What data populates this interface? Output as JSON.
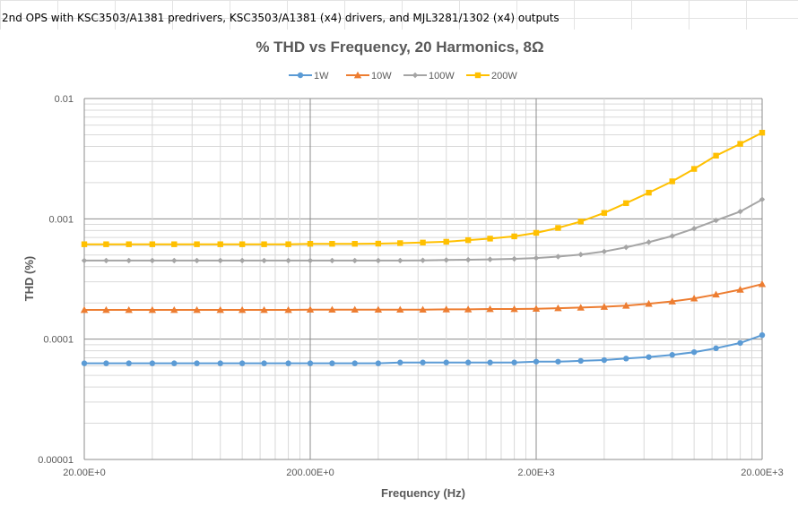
{
  "sheet": {
    "header_text": "2nd OPS with KSC3503/A1381 predrivers, KSC3503/A1381 (x4) drivers, and MJL3281/1302  (x4) outputs"
  },
  "chart_data": {
    "type": "line",
    "title": "% THD vs Frequency, 20 Harmonics, 8Ω",
    "xlabel": "Frequency (Hz)",
    "ylabel": "THD (%)",
    "x_scale": "log",
    "y_scale": "log",
    "xlim": [
      20,
      20000
    ],
    "ylim": [
      1e-05,
      0.01
    ],
    "x_ticks": [
      {
        "value": 20,
        "label": "20.00E+0"
      },
      {
        "value": 200,
        "label": "200.00E+0"
      },
      {
        "value": 2000,
        "label": "2.00E+3"
      },
      {
        "value": 20000,
        "label": "20.00E+3"
      }
    ],
    "y_ticks": [
      {
        "value": 1e-05,
        "label": "0.00001"
      },
      {
        "value": 0.0001,
        "label": "0.0001"
      },
      {
        "value": 0.001,
        "label": "0.001"
      },
      {
        "value": 0.01,
        "label": "0.01"
      }
    ],
    "grid": true,
    "legend_position": "top",
    "x": [
      20,
      25,
      31.5,
      40,
      50,
      63,
      80,
      100,
      125,
      160,
      200,
      250,
      315,
      400,
      500,
      630,
      800,
      1000,
      1250,
      1600,
      2000,
      2500,
      3150,
      4000,
      5000,
      6300,
      8000,
      10000,
      12500,
      16000,
      20000
    ],
    "series": [
      {
        "name": "1W",
        "color": "#5B9BD5",
        "marker": "circle",
        "values": [
          6.3e-05,
          6.3e-05,
          6.3e-05,
          6.3e-05,
          6.3e-05,
          6.3e-05,
          6.3e-05,
          6.3e-05,
          6.3e-05,
          6.3e-05,
          6.3e-05,
          6.3e-05,
          6.3e-05,
          6.3e-05,
          6.4e-05,
          6.4e-05,
          6.4e-05,
          6.4e-05,
          6.4e-05,
          6.4e-05,
          6.5e-05,
          6.5e-05,
          6.6e-05,
          6.7e-05,
          6.9e-05,
          7.1e-05,
          7.4e-05,
          7.8e-05,
          8.4e-05,
          9.3e-05,
          0.000108
        ]
      },
      {
        "name": "10W",
        "color": "#ED7D31",
        "marker": "triangle",
        "values": [
          0.000175,
          0.000175,
          0.000175,
          0.000175,
          0.000175,
          0.000175,
          0.000175,
          0.000175,
          0.000175,
          0.000175,
          0.000176,
          0.000176,
          0.000176,
          0.000176,
          0.000176,
          0.000176,
          0.000177,
          0.000177,
          0.000178,
          0.000178,
          0.000179,
          0.000181,
          0.000183,
          0.000186,
          0.00019,
          0.000197,
          0.000206,
          0.000218,
          0.000235,
          0.000258,
          0.000287
        ]
      },
      {
        "name": "100W",
        "color": "#A5A5A5",
        "marker": "diamond",
        "values": [
          0.00045,
          0.00045,
          0.00045,
          0.00045,
          0.00045,
          0.00045,
          0.00045,
          0.00045,
          0.00045,
          0.00045,
          0.00045,
          0.00045,
          0.00045,
          0.00045,
          0.00045,
          0.000452,
          0.000455,
          0.000457,
          0.00046,
          0.000465,
          0.000472,
          0.000485,
          0.000505,
          0.000535,
          0.00058,
          0.00064,
          0.00072,
          0.00083,
          0.00097,
          0.00115,
          0.00145
        ]
      },
      {
        "name": "200W",
        "color": "#FFC000",
        "marker": "square",
        "values": [
          0.000615,
          0.000615,
          0.000615,
          0.000615,
          0.000615,
          0.000615,
          0.000615,
          0.000615,
          0.000615,
          0.000615,
          0.00062,
          0.00062,
          0.00062,
          0.000622,
          0.000628,
          0.000635,
          0.000645,
          0.000665,
          0.000685,
          0.000715,
          0.000765,
          0.00084,
          0.00095,
          0.00112,
          0.00135,
          0.00165,
          0.00205,
          0.0026,
          0.00335,
          0.0042,
          0.0052
        ]
      }
    ]
  }
}
